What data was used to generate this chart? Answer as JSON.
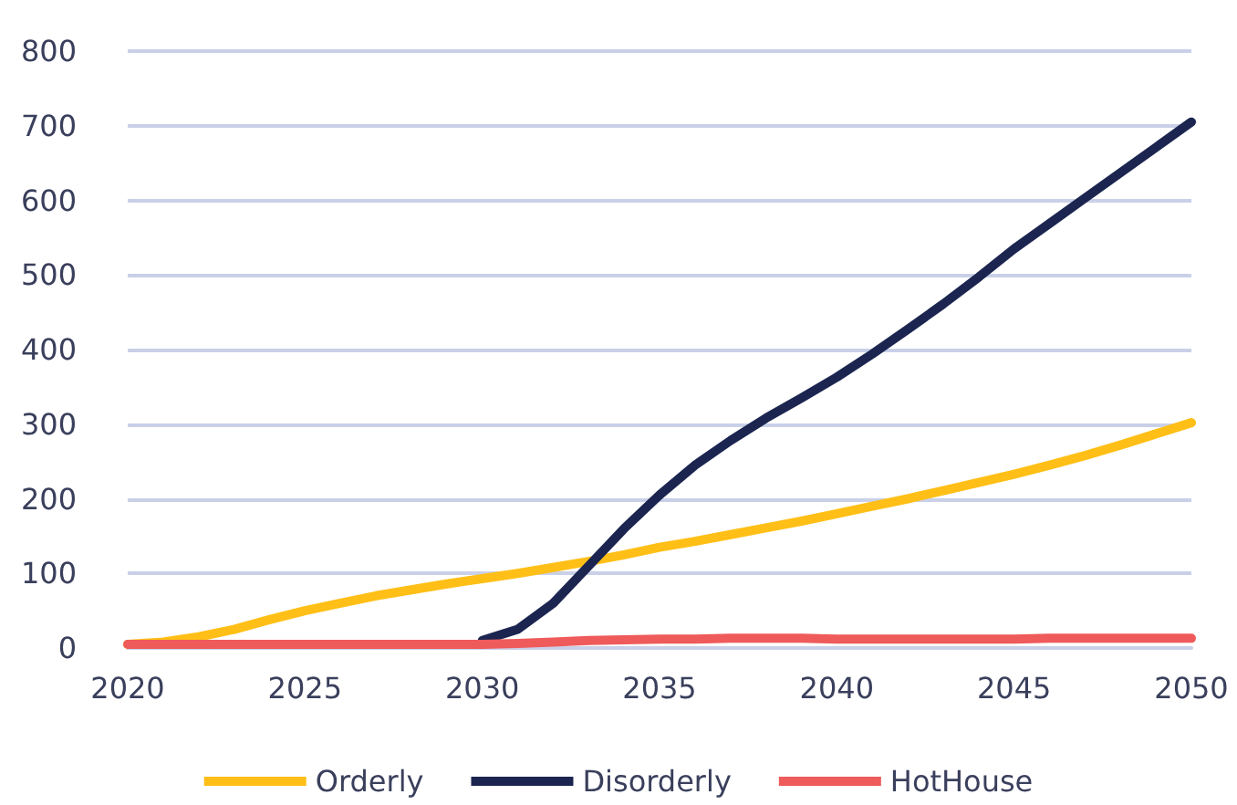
{
  "chart_data": {
    "type": "line",
    "x": [
      2020,
      2021,
      2022,
      2023,
      2024,
      2025,
      2026,
      2027,
      2028,
      2029,
      2030,
      2031,
      2032,
      2033,
      2034,
      2035,
      2036,
      2037,
      2038,
      2039,
      2040,
      2041,
      2042,
      2043,
      2044,
      2045,
      2046,
      2047,
      2048,
      2049,
      2050
    ],
    "series": [
      {
        "name": "Orderly",
        "color": "#ffbf16",
        "values": [
          5,
          8,
          15,
          25,
          38,
          50,
          60,
          70,
          78,
          86,
          93,
          100,
          108,
          116,
          125,
          135,
          143,
          152,
          161,
          170,
          180,
          190,
          200,
          211,
          222,
          233,
          245,
          258,
          272,
          287,
          302
        ]
      },
      {
        "name": "Disorderly",
        "color": "#1b2550",
        "values": [
          null,
          null,
          null,
          null,
          null,
          null,
          null,
          null,
          null,
          null,
          10,
          25,
          60,
          110,
          160,
          205,
          245,
          278,
          308,
          335,
          363,
          394,
          427,
          461,
          497,
          535,
          569,
          603,
          637,
          671,
          705
        ]
      },
      {
        "name": "HotHouse",
        "color": "#ef5a5a",
        "values": [
          5,
          5,
          5,
          5,
          5,
          5,
          5,
          5,
          5,
          5,
          5,
          6,
          8,
          10,
          11,
          12,
          12,
          13,
          13,
          13,
          12,
          12,
          12,
          12,
          12,
          12,
          13,
          13,
          13,
          13,
          13
        ]
      }
    ],
    "xlim": [
      2020,
      2050
    ],
    "xticks": [
      2020,
      2025,
      2030,
      2035,
      2040,
      2045,
      2050
    ],
    "ylim": [
      0,
      800
    ],
    "yticks": [
      0,
      100,
      200,
      300,
      400,
      500,
      600,
      700,
      800
    ],
    "grid": "y",
    "legend": "bottom",
    "marker": "none",
    "line_style": "solid"
  }
}
